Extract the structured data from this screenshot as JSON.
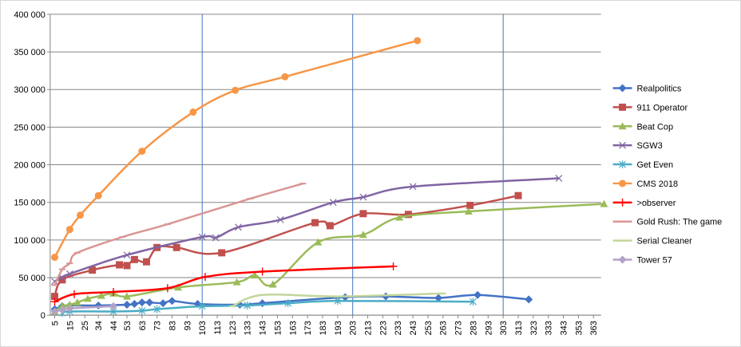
{
  "chart_data": {
    "type": "line",
    "title": "",
    "xlabel": "",
    "ylabel": "",
    "ylim": [
      0,
      400000
    ],
    "y_ticks": [
      "0",
      "50 000",
      "100 000",
      "150 000",
      "200 000",
      "250 000",
      "300 000",
      "350 000",
      "400 000"
    ],
    "x_ticks": [
      "5",
      "15",
      "25",
      "34",
      "44",
      "53",
      "63",
      "73",
      "83",
      "93",
      "103",
      "113",
      "123",
      "133",
      "143",
      "153",
      "163",
      "173",
      "183",
      "193",
      "203",
      "213",
      "223",
      "233",
      "243",
      "253",
      "263",
      "273",
      "283",
      "293",
      "303",
      "313",
      "323",
      "333",
      "343",
      "353",
      "363"
    ],
    "grid": "horizontal",
    "vertical_reference_lines": [
      103,
      203,
      303
    ],
    "legend_position": "right",
    "series": [
      {
        "name": "Realpolitics",
        "color": "#4472C4",
        "marker": "diamond",
        "smooth": true,
        "points": [
          [
            5,
            8000
          ],
          [
            10,
            12000
          ],
          [
            15,
            13000
          ],
          [
            34,
            13000
          ],
          [
            53,
            14000
          ],
          [
            58,
            15000
          ],
          [
            63,
            17000
          ],
          [
            68,
            17000
          ],
          [
            77,
            16000
          ],
          [
            83,
            19000
          ],
          [
            100,
            15000
          ],
          [
            128,
            14000
          ],
          [
            143,
            16000
          ],
          [
            198,
            24000
          ],
          [
            225,
            25000
          ],
          [
            260,
            23000
          ],
          [
            286,
            27000
          ],
          [
            320,
            21000
          ]
        ]
      },
      {
        "name": "911 Operator",
        "color": "#C0504D",
        "marker": "square",
        "smooth": true,
        "points": [
          [
            5,
            25000
          ],
          [
            10,
            47000
          ],
          [
            30,
            60000
          ],
          [
            48,
            67000
          ],
          [
            53,
            66000
          ],
          [
            58,
            74000
          ],
          [
            66,
            71000
          ],
          [
            73,
            90000
          ],
          [
            86,
            90000
          ],
          [
            116,
            83000
          ],
          [
            178,
            123000
          ],
          [
            188,
            119000
          ],
          [
            210,
            135000
          ],
          [
            240,
            134000
          ],
          [
            281,
            146000
          ],
          [
            313,
            159000
          ]
        ]
      },
      {
        "name": "Beat Cop",
        "color": "#9BBB59",
        "marker": "triangle",
        "smooth": true,
        "points": [
          [
            5,
            5000
          ],
          [
            10,
            12000
          ],
          [
            15,
            14000
          ],
          [
            20,
            17000
          ],
          [
            27,
            22000
          ],
          [
            36,
            26000
          ],
          [
            44,
            29000
          ],
          [
            53,
            25000
          ],
          [
            87,
            37000
          ],
          [
            126,
            44000
          ],
          [
            138,
            53000
          ],
          [
            150,
            41000
          ],
          [
            180,
            97000
          ],
          [
            210,
            107000
          ],
          [
            234,
            130000
          ],
          [
            280,
            138000
          ],
          [
            370,
            148000
          ]
        ]
      },
      {
        "name": "SGW3",
        "color": "#8064A2",
        "marker": "x",
        "smooth": true,
        "points": [
          [
            5,
            45000
          ],
          [
            10,
            50000
          ],
          [
            15,
            55000
          ],
          [
            53,
            80000
          ],
          [
            103,
            104000
          ],
          [
            112,
            103000
          ],
          [
            127,
            117000
          ],
          [
            155,
            127000
          ],
          [
            190,
            150000
          ],
          [
            210,
            157000
          ],
          [
            243,
            171000
          ],
          [
            340,
            182000
          ]
        ]
      },
      {
        "name": "Get Even",
        "color": "#4BACC6",
        "marker": "asterisk",
        "smooth": true,
        "points": [
          [
            10,
            3000
          ],
          [
            15,
            5000
          ],
          [
            44,
            5000
          ],
          [
            63,
            6000
          ],
          [
            73,
            8000
          ],
          [
            103,
            12000
          ],
          [
            133,
            13000
          ],
          [
            160,
            16000
          ],
          [
            193,
            19000
          ],
          [
            283,
            18000
          ]
        ]
      },
      {
        "name": "CMS 2018",
        "color": "#F79646",
        "marker": "circle",
        "smooth": true,
        "points": [
          [
            5,
            77000
          ],
          [
            15,
            114000
          ],
          [
            22,
            133000
          ],
          [
            34,
            159000
          ],
          [
            63,
            218000
          ],
          [
            97,
            270000
          ],
          [
            125,
            299000
          ],
          [
            158,
            317000
          ],
          [
            246,
            365000
          ]
        ]
      },
      {
        "name": ">observer",
        "color": "#FF0000",
        "marker": "plus",
        "smooth": true,
        "points": [
          [
            5,
            18000
          ],
          [
            18,
            28000
          ],
          [
            44,
            31000
          ],
          [
            80,
            36000
          ],
          [
            105,
            51000
          ],
          [
            143,
            58000
          ],
          [
            230,
            65000
          ]
        ]
      },
      {
        "name": "Gold Rush: The game",
        "color": "#D99694",
        "marker": "dash",
        "smooth": true,
        "points": [
          [
            5,
            40000
          ],
          [
            10,
            61000
          ],
          [
            15,
            69000
          ],
          [
            20,
            83000
          ],
          [
            50,
            104000
          ],
          [
            80,
            121000
          ],
          [
            135,
            155000
          ],
          [
            170,
            175000
          ]
        ]
      },
      {
        "name": "Serial Cleaner",
        "color": "#C3D69B",
        "marker": "dash",
        "smooth": true,
        "points": [
          [
            123,
            12000
          ],
          [
            143,
            27000
          ],
          [
            193,
            25000
          ],
          [
            263,
            29000
          ]
        ]
      },
      {
        "name": "Tower 57",
        "color": "#B3A2C7",
        "marker": "diamond",
        "smooth": true,
        "points": [
          [
            5,
            5000
          ],
          [
            10,
            7000
          ],
          [
            15,
            9000
          ],
          [
            44,
            12000
          ]
        ]
      }
    ]
  }
}
